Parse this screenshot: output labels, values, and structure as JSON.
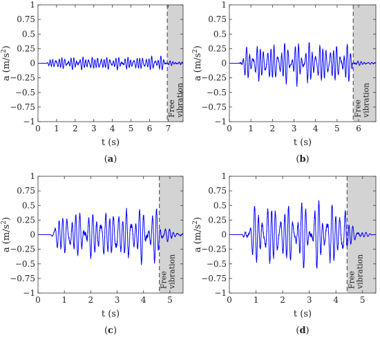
{
  "chart_data": [
    {
      "type": "line",
      "panel_label": "(a)",
      "xlabel": "t (s)",
      "ylabel": "a (m/s2)",
      "xlim": [
        0,
        7.8
      ],
      "ylim": [
        -1,
        1
      ],
      "xticks": [
        0,
        1,
        2,
        3,
        4,
        5,
        6,
        7
      ],
      "yticks": [
        -1,
        -0.75,
        -0.5,
        -0.25,
        0,
        0.25,
        0.5,
        0.75,
        1
      ],
      "ytick_labels": [
        "−1",
        "−0.75",
        "−0.5",
        "−0.25",
        "0",
        "0.25",
        "0.5",
        "0.75",
        "1"
      ],
      "series": [
        {
          "color": "#0000ff",
          "t_start": 0.4,
          "t_end": 6.9,
          "peak_amplitude": 0.17,
          "typical_amplitude": 0.1,
          "tail_amplitude": 0.04,
          "tail_decay_s": 1.5
        }
      ],
      "shaded_region": {
        "x_start": 6.95,
        "x_end": 7.8,
        "color": "#d3d3d3",
        "label": "Free vibration"
      },
      "grid": false
    },
    {
      "type": "line",
      "panel_label": "(b)",
      "xlabel": "t (s)",
      "ylabel": "a (m/s2)",
      "xlim": [
        0,
        6.8
      ],
      "ylim": [
        -1,
        1
      ],
      "xticks": [
        0,
        1,
        2,
        3,
        4,
        5,
        6
      ],
      "yticks": [
        -1,
        -0.75,
        -0.5,
        -0.25,
        0,
        0.25,
        0.5,
        0.75,
        1
      ],
      "ytick_labels": [
        "−1",
        "−0.75",
        "−0.5",
        "−0.25",
        "0",
        "0.25",
        "0.5",
        "0.75",
        "1"
      ],
      "series": [
        {
          "color": "#0000ff",
          "t_start": 0.4,
          "t_end": 5.7,
          "peak_amplitude": 0.4,
          "typical_amplitude": 0.28,
          "tail_amplitude": 0.05,
          "tail_decay_s": 0.9
        }
      ],
      "shaded_region": {
        "x_start": 5.75,
        "x_end": 6.8,
        "color": "#d3d3d3",
        "label": "Free vibration"
      },
      "grid": false
    },
    {
      "type": "line",
      "panel_label": "(c)",
      "xlabel": "t (s)",
      "ylabel": "a (m/s2)",
      "xlim": [
        0,
        5.5
      ],
      "ylim": [
        -1,
        1
      ],
      "xticks": [
        0,
        1,
        2,
        3,
        4,
        5
      ],
      "yticks": [
        -1,
        -0.75,
        -0.5,
        -0.25,
        0,
        0.25,
        0.5,
        0.75,
        1
      ],
      "ytick_labels": [
        "−1",
        "−0.75",
        "−0.5",
        "−0.25",
        "0",
        "0.25",
        "0.5",
        "0.75",
        "1"
      ],
      "series": [
        {
          "color": "#0000ff",
          "t_start": 0.45,
          "t_end": 4.6,
          "peak_amplitude": 0.6,
          "typical_amplitude": 0.4,
          "tail_amplitude": 0.3,
          "tail_decay_s": 0.35
        }
      ],
      "shaded_region": {
        "x_start": 4.6,
        "x_end": 5.5,
        "color": "#d3d3d3",
        "label": "Free vibration"
      },
      "grid": false
    },
    {
      "type": "line",
      "panel_label": "(d)",
      "xlabel": "t (s)",
      "ylabel": "a (m/s2)",
      "xlim": [
        0,
        5.5
      ],
      "ylim": [
        -1,
        1
      ],
      "xticks": [
        0,
        1,
        2,
        3,
        4,
        5
      ],
      "yticks": [
        -1,
        -0.75,
        -0.5,
        -0.25,
        0,
        0.25,
        0.5,
        0.75,
        1
      ],
      "ytick_labels": [
        "−1",
        "−0.75",
        "−0.5",
        "−0.25",
        "0",
        "0.25",
        "0.5",
        "0.75",
        "1"
      ],
      "series": [
        {
          "color": "#0000ff",
          "t_start": 0.45,
          "t_end": 4.4,
          "peak_amplitude": 0.7,
          "typical_amplitude": 0.45,
          "tail_amplitude": 0.3,
          "tail_decay_s": 0.35
        }
      ],
      "shaded_region": {
        "x_start": 4.42,
        "x_end": 5.5,
        "color": "#d3d3d3",
        "label": "Free vibration"
      },
      "grid": false
    }
  ]
}
